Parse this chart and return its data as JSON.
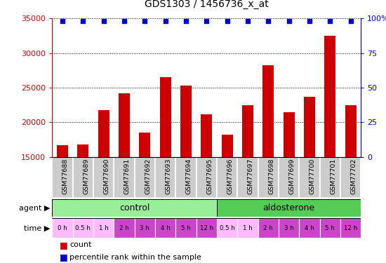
{
  "title": "GDS1303 / 1456736_x_at",
  "samples": [
    "GSM77688",
    "GSM77689",
    "GSM77690",
    "GSM77691",
    "GSM77692",
    "GSM77693",
    "GSM77694",
    "GSM77695",
    "GSM77696",
    "GSM77697",
    "GSM77698",
    "GSM77699",
    "GSM77700",
    "GSM77701",
    "GSM77702"
  ],
  "counts": [
    16700,
    16800,
    21800,
    24200,
    18500,
    26500,
    25300,
    21200,
    18200,
    22500,
    28200,
    21500,
    23700,
    32500,
    22500
  ],
  "bar_color": "#cc0000",
  "dot_color": "#0000cc",
  "ylim_left": [
    15000,
    35000
  ],
  "ylim_right": [
    0,
    100
  ],
  "yticks_left": [
    15000,
    20000,
    25000,
    30000,
    35000
  ],
  "yticks_right": [
    0,
    25,
    50,
    75,
    100
  ],
  "control_color": "#99ee99",
  "aldosterone_color": "#55cc55",
  "time_colors": [
    "#ffbbff",
    "#ffbbff",
    "#ffbbff",
    "#cc44cc",
    "#cc44cc",
    "#cc44cc",
    "#cc44cc",
    "#cc44cc",
    "#ffbbff",
    "#ffbbff",
    "#cc44cc",
    "#cc44cc",
    "#cc44cc",
    "#cc44cc",
    "#cc44cc"
  ],
  "time_labels": [
    "0 h",
    "0.5 h",
    "1 h",
    "2 h",
    "3 h",
    "4 h",
    "5 h",
    "12 h",
    "0.5 h",
    "1 h",
    "2 h",
    "3 h",
    "4 h",
    "5 h",
    "12 h"
  ],
  "n_control": 8,
  "n_aldosterone": 7,
  "left_color": "#cc0000",
  "right_color": "#0000cc",
  "sample_bg": "#cccccc",
  "title_fontsize": 10,
  "bar_width": 0.55
}
